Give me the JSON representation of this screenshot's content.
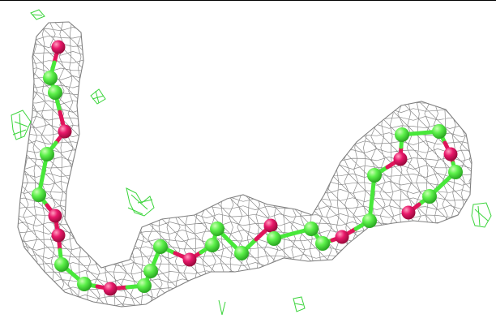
{
  "scene": {
    "background": "#ffffff",
    "colors": {
      "mesh": "#7f7f7f",
      "carbon": "#48e83a",
      "carbon_highlight": "#b6ff9e",
      "oxygen": "#e0145a",
      "oxygen_highlight": "#ff7aa8",
      "difference_density": "#3ad43a"
    },
    "subject": "density-mesh-with-ball-and-stick-chain"
  }
}
